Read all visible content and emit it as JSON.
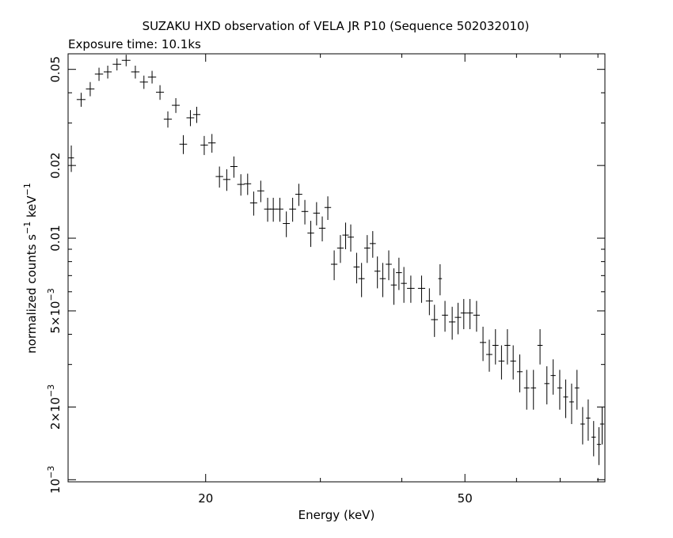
{
  "chart_data": {
    "type": "scatter",
    "title": "SUZAKU HXD observation of VELA JR P10 (Sequence 502032010)",
    "subtitle": "Exposure time: 10.1ks",
    "xlabel": "Energy (keV)",
    "ylabel": "normalized counts s^-1 keV^-1",
    "ylabel_parts": [
      "normalized counts s",
      "−1",
      " keV",
      "−1"
    ],
    "x_scale": "log",
    "y_scale": "log",
    "xlim": [
      12.3,
      82
    ],
    "ylim": [
      0.00098,
      0.058
    ],
    "x_ticks": [
      {
        "value": 20,
        "label": "20"
      },
      {
        "value": 50,
        "label": "50"
      }
    ],
    "y_ticks": [
      {
        "value": 0.001,
        "label": "10",
        "exp": "−3"
      },
      {
        "value": 0.002,
        "label": "2×10",
        "exp": "−3"
      },
      {
        "value": 0.005,
        "label": "5×10",
        "exp": "−3"
      },
      {
        "value": 0.01,
        "label": "0.01",
        "exp": ""
      },
      {
        "value": 0.02,
        "label": "0.02",
        "exp": ""
      },
      {
        "value": 0.05,
        "label": "0.05",
        "exp": ""
      }
    ],
    "grid": false,
    "points": [
      [
        12.44,
        0.0215,
        0.12,
        0.0027
      ],
      [
        12.88,
        0.0375,
        0.2,
        0.0025
      ],
      [
        13.3,
        0.0415,
        0.2,
        0.0028
      ],
      [
        13.72,
        0.0478,
        0.2,
        0.003
      ],
      [
        14.15,
        0.0488,
        0.2,
        0.003
      ],
      [
        14.62,
        0.0525,
        0.22,
        0.003
      ],
      [
        15.1,
        0.0545,
        0.23,
        0.003
      ],
      [
        15.6,
        0.0488,
        0.23,
        0.003
      ],
      [
        16.08,
        0.0443,
        0.23,
        0.0028
      ],
      [
        16.55,
        0.0465,
        0.24,
        0.0028
      ],
      [
        17.02,
        0.0402,
        0.24,
        0.0028
      ],
      [
        17.5,
        0.0311,
        0.25,
        0.0024
      ],
      [
        18.0,
        0.0355,
        0.25,
        0.0025
      ],
      [
        18.48,
        0.0245,
        0.25,
        0.0022
      ],
      [
        18.95,
        0.0315,
        0.26,
        0.0024
      ],
      [
        19.38,
        0.0325,
        0.25,
        0.0025
      ],
      [
        19.9,
        0.0243,
        0.26,
        0.0022
      ],
      [
        20.45,
        0.0248,
        0.27,
        0.0022
      ],
      [
        21.0,
        0.018,
        0.28,
        0.0018
      ],
      [
        21.55,
        0.0175,
        0.28,
        0.0018
      ],
      [
        22.1,
        0.0198,
        0.28,
        0.002
      ],
      [
        22.65,
        0.0167,
        0.29,
        0.0017
      ],
      [
        23.2,
        0.0168,
        0.29,
        0.0017
      ],
      [
        23.7,
        0.014,
        0.3,
        0.0016
      ],
      [
        24.3,
        0.0157,
        0.3,
        0.0016
      ],
      [
        24.9,
        0.0132,
        0.31,
        0.0015
      ],
      [
        25.4,
        0.0132,
        0.32,
        0.0015
      ],
      [
        26.0,
        0.0132,
        0.32,
        0.0015
      ],
      [
        26.6,
        0.0115,
        0.33,
        0.0014
      ],
      [
        27.2,
        0.0132,
        0.33,
        0.0015
      ],
      [
        27.8,
        0.0152,
        0.34,
        0.0016
      ],
      [
        28.4,
        0.0129,
        0.34,
        0.0015
      ],
      [
        29.0,
        0.0105,
        0.34,
        0.0013
      ],
      [
        29.6,
        0.0127,
        0.35,
        0.0014
      ],
      [
        30.2,
        0.011,
        0.35,
        0.0013
      ],
      [
        30.8,
        0.0134,
        0.36,
        0.0015
      ],
      [
        31.5,
        0.0078,
        0.36,
        0.0011
      ],
      [
        32.2,
        0.0091,
        0.37,
        0.0012
      ],
      [
        32.8,
        0.0103,
        0.37,
        0.0013
      ],
      [
        33.4,
        0.0101,
        0.37,
        0.0013
      ],
      [
        34.1,
        0.0076,
        0.37,
        0.0011
      ],
      [
        34.7,
        0.0068,
        0.38,
        0.0011
      ],
      [
        35.4,
        0.0091,
        0.38,
        0.0012
      ],
      [
        36.1,
        0.0095,
        0.39,
        0.0012
      ],
      [
        36.7,
        0.0073,
        0.39,
        0.0011
      ],
      [
        37.4,
        0.0068,
        0.4,
        0.0011
      ],
      [
        38.2,
        0.0078,
        0.41,
        0.0011
      ],
      [
        38.9,
        0.0064,
        0.41,
        0.0011
      ],
      [
        39.6,
        0.0072,
        0.42,
        0.0011
      ],
      [
        40.3,
        0.0065,
        0.42,
        0.0011
      ],
      [
        41.3,
        0.0062,
        0.55,
        0.0008
      ],
      [
        42.9,
        0.0062,
        0.55,
        0.0008
      ],
      [
        44.1,
        0.0055,
        0.55,
        0.0007
      ],
      [
        44.9,
        0.0046,
        0.55,
        0.0007
      ],
      [
        45.8,
        0.0068,
        0.3,
        0.001
      ],
      [
        46.6,
        0.0048,
        0.5,
        0.0007
      ],
      [
        47.8,
        0.0045,
        0.55,
        0.0007
      ],
      [
        48.8,
        0.0047,
        0.55,
        0.0007
      ],
      [
        49.8,
        0.0049,
        0.55,
        0.0007
      ],
      [
        50.9,
        0.0049,
        0.55,
        0.0007
      ],
      [
        52.1,
        0.0048,
        0.6,
        0.0007
      ],
      [
        53.3,
        0.0037,
        0.6,
        0.0006
      ],
      [
        54.5,
        0.0033,
        0.6,
        0.0005
      ],
      [
        55.7,
        0.0036,
        0.6,
        0.0006
      ],
      [
        56.9,
        0.0031,
        0.6,
        0.0005
      ],
      [
        58.1,
        0.0036,
        0.6,
        0.0006
      ],
      [
        59.3,
        0.0031,
        0.6,
        0.0005
      ],
      [
        60.7,
        0.0028,
        0.6,
        0.0005
      ],
      [
        62.2,
        0.0024,
        0.6,
        0.00045
      ],
      [
        63.7,
        0.0024,
        0.6,
        0.00045
      ],
      [
        65.2,
        0.0036,
        0.6,
        0.0006
      ],
      [
        66.8,
        0.0025,
        0.6,
        0.00045
      ],
      [
        68.3,
        0.0027,
        0.6,
        0.00045
      ],
      [
        69.9,
        0.0024,
        0.6,
        0.00045
      ],
      [
        71.4,
        0.0022,
        0.6,
        0.0004
      ],
      [
        72.9,
        0.0021,
        0.6,
        0.0004
      ],
      [
        74.3,
        0.0024,
        0.6,
        0.00045
      ],
      [
        75.8,
        0.0017,
        0.6,
        0.0003
      ],
      [
        77.3,
        0.0018,
        0.6,
        0.00035
      ],
      [
        78.8,
        0.0015,
        0.6,
        0.00025
      ],
      [
        80.3,
        0.0014,
        0.6,
        0.00025
      ],
      [
        81.2,
        0.0017,
        0.6,
        0.0003
      ]
    ]
  }
}
